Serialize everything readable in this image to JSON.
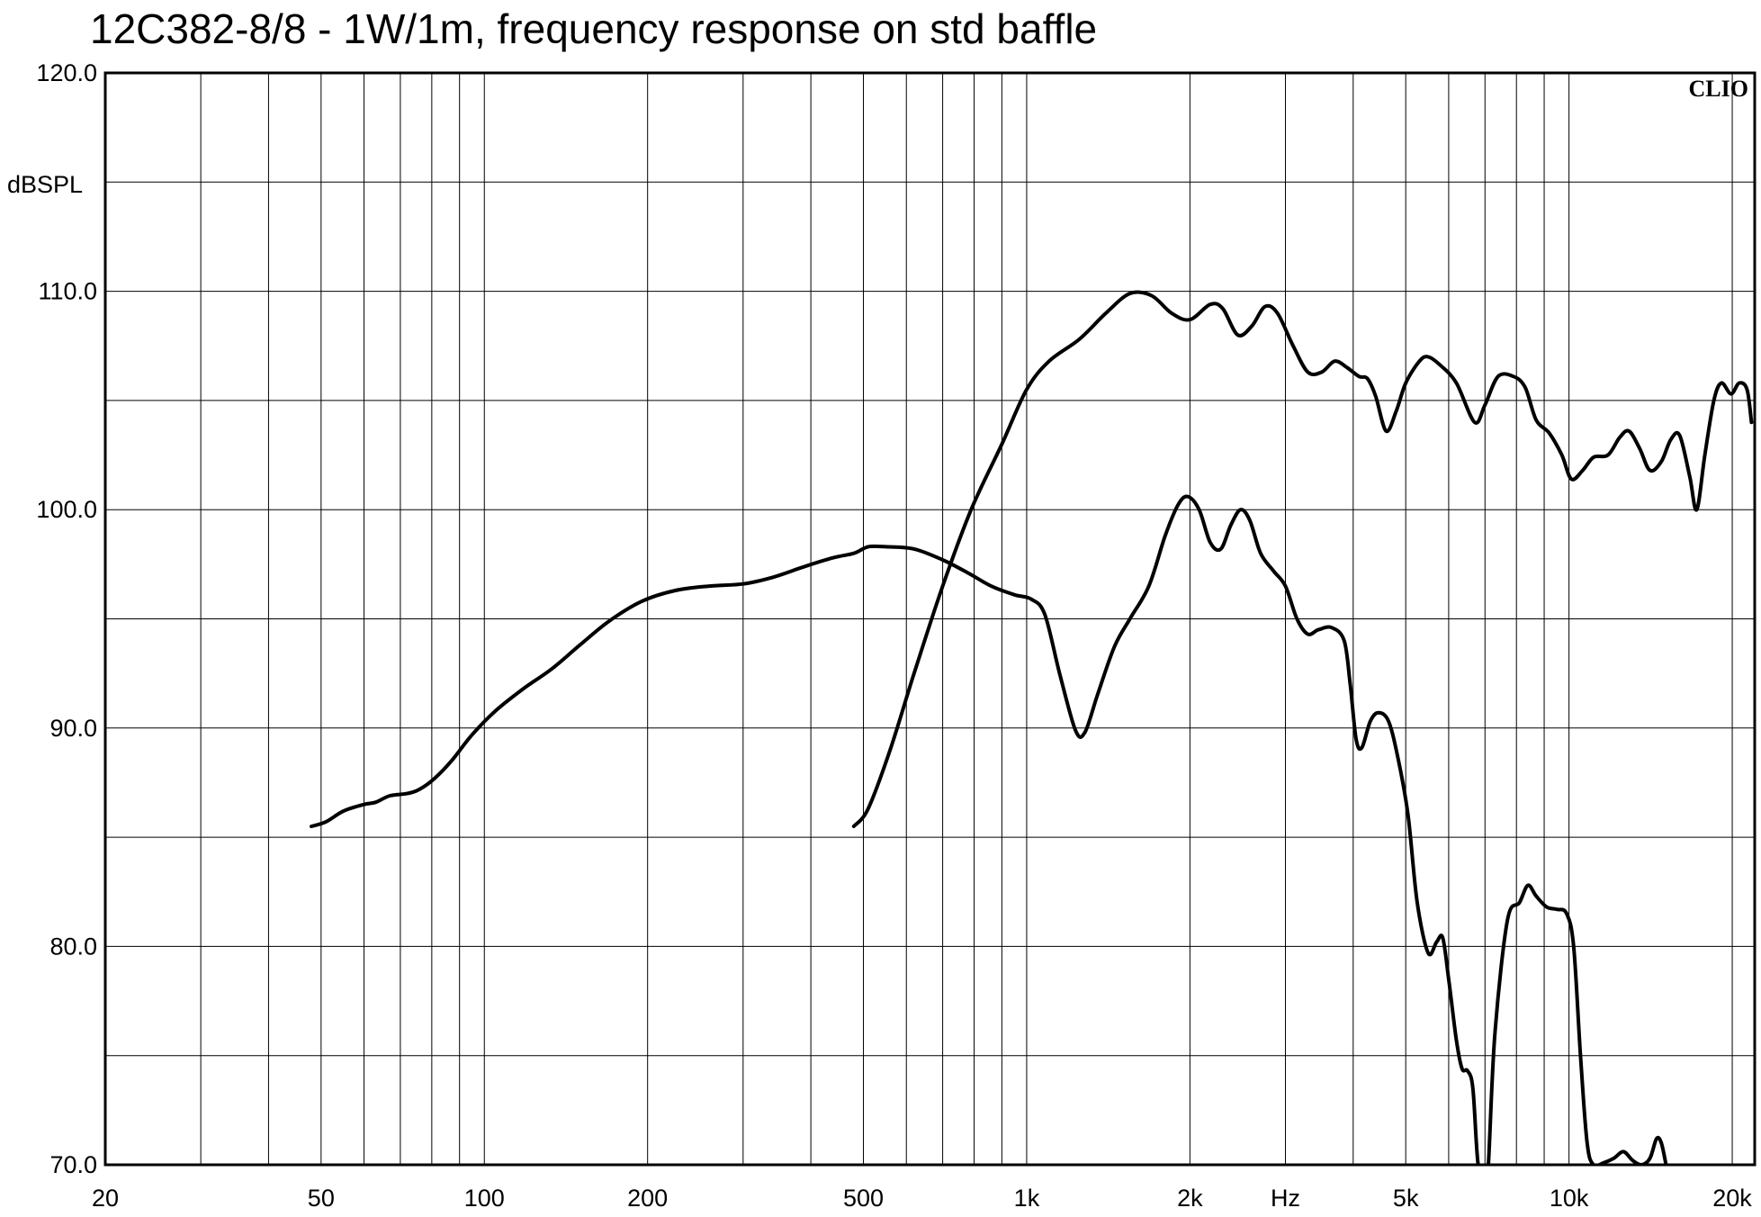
{
  "chart_data": {
    "type": "line",
    "title": "12C382-8/8 - 1W/1m, frequency response on std baffle",
    "ylabel": "dBSPL",
    "xlabel": "Hz",
    "brand": "CLIO",
    "x_scale": "log",
    "xlim": [
      20,
      22000
    ],
    "ylim": [
      70,
      120
    ],
    "grid": true,
    "x_ticks": [
      {
        "value": 20,
        "label": "20"
      },
      {
        "value": 50,
        "label": "50"
      },
      {
        "value": 100,
        "label": "100"
      },
      {
        "value": 200,
        "label": "200"
      },
      {
        "value": 500,
        "label": "500"
      },
      {
        "value": 1000,
        "label": "1k"
      },
      {
        "value": 2000,
        "label": "2k"
      },
      {
        "value": 3000,
        "label": "Hz"
      },
      {
        "value": 5000,
        "label": "5k"
      },
      {
        "value": 10000,
        "label": "10k"
      },
      {
        "value": 20000,
        "label": "20k"
      }
    ],
    "x_grid": [
      30,
      40,
      50,
      60,
      70,
      80,
      90,
      100,
      200,
      300,
      400,
      500,
      600,
      700,
      800,
      900,
      1000,
      2000,
      3000,
      4000,
      5000,
      6000,
      7000,
      8000,
      9000,
      10000,
      20000
    ],
    "y_ticks": [
      {
        "value": 70,
        "label": "70.0"
      },
      {
        "value": 80,
        "label": "80.0"
      },
      {
        "value": 90,
        "label": "90.0"
      },
      {
        "value": 100,
        "label": "100.0"
      },
      {
        "value": 110,
        "label": "110.0"
      },
      {
        "value": 120,
        "label": "120.0"
      }
    ],
    "y_grid": [
      75,
      80,
      85,
      90,
      95,
      100,
      105,
      110,
      115
    ],
    "series": [
      {
        "points": [
          [
            480,
            85.5
          ],
          [
            510,
            86.3
          ],
          [
            560,
            89.0
          ],
          [
            620,
            92.5
          ],
          [
            700,
            96.5
          ],
          [
            790,
            100.0
          ],
          [
            900,
            103.0
          ],
          [
            1000,
            105.5
          ],
          [
            1100,
            106.8
          ],
          [
            1250,
            107.8
          ],
          [
            1400,
            109.0
          ],
          [
            1550,
            109.9
          ],
          [
            1700,
            109.8
          ],
          [
            1850,
            109.0
          ],
          [
            2000,
            108.7
          ],
          [
            2180,
            109.4
          ],
          [
            2300,
            109.2
          ],
          [
            2450,
            108.0
          ],
          [
            2600,
            108.4
          ],
          [
            2750,
            109.3
          ],
          [
            2900,
            109.0
          ],
          [
            3100,
            107.5
          ],
          [
            3300,
            106.3
          ],
          [
            3500,
            106.3
          ],
          [
            3700,
            106.8
          ],
          [
            3900,
            106.5
          ],
          [
            4100,
            106.1
          ],
          [
            4250,
            106.0
          ],
          [
            4400,
            105.2
          ],
          [
            4600,
            103.6
          ],
          [
            4800,
            104.5
          ],
          [
            5000,
            105.8
          ],
          [
            5300,
            106.8
          ],
          [
            5500,
            107.0
          ],
          [
            5800,
            106.6
          ],
          [
            6200,
            105.8
          ],
          [
            6700,
            104.0
          ],
          [
            7000,
            104.8
          ],
          [
            7400,
            106.1
          ],
          [
            7900,
            106.1
          ],
          [
            8300,
            105.6
          ],
          [
            8700,
            104.1
          ],
          [
            9200,
            103.5
          ],
          [
            9700,
            102.5
          ],
          [
            10100,
            101.4
          ],
          [
            10600,
            101.8
          ],
          [
            11100,
            102.4
          ],
          [
            11800,
            102.5
          ],
          [
            12400,
            103.3
          ],
          [
            12900,
            103.6
          ],
          [
            13500,
            102.8
          ],
          [
            14100,
            101.8
          ],
          [
            14800,
            102.2
          ],
          [
            15400,
            103.2
          ],
          [
            16000,
            103.4
          ],
          [
            16700,
            101.5
          ],
          [
            17200,
            100.0
          ],
          [
            17800,
            102.5
          ],
          [
            18500,
            105.0
          ],
          [
            19100,
            105.8
          ],
          [
            19900,
            105.3
          ],
          [
            20600,
            105.8
          ],
          [
            21300,
            105.5
          ],
          [
            21700,
            104.0
          ]
        ]
      },
      {
        "points": [
          [
            48,
            85.5
          ],
          [
            51,
            85.7
          ],
          [
            55,
            86.2
          ],
          [
            60,
            86.5
          ],
          [
            63,
            86.6
          ],
          [
            67,
            86.9
          ],
          [
            72,
            87.0
          ],
          [
            76,
            87.2
          ],
          [
            81,
            87.7
          ],
          [
            87,
            88.5
          ],
          [
            95,
            89.7
          ],
          [
            105,
            90.8
          ],
          [
            118,
            91.8
          ],
          [
            133,
            92.7
          ],
          [
            150,
            93.8
          ],
          [
            170,
            94.9
          ],
          [
            195,
            95.8
          ],
          [
            225,
            96.3
          ],
          [
            260,
            96.5
          ],
          [
            300,
            96.6
          ],
          [
            340,
            96.9
          ],
          [
            390,
            97.4
          ],
          [
            440,
            97.8
          ],
          [
            480,
            98.0
          ],
          [
            510,
            98.3
          ],
          [
            550,
            98.3
          ],
          [
            620,
            98.2
          ],
          [
            700,
            97.7
          ],
          [
            780,
            97.1
          ],
          [
            860,
            96.5
          ],
          [
            950,
            96.1
          ],
          [
            1020,
            95.9
          ],
          [
            1080,
            95.2
          ],
          [
            1150,
            92.5
          ],
          [
            1230,
            89.9
          ],
          [
            1280,
            89.8
          ],
          [
            1350,
            91.5
          ],
          [
            1450,
            93.7
          ],
          [
            1550,
            95.0
          ],
          [
            1680,
            96.5
          ],
          [
            1800,
            98.8
          ],
          [
            1900,
            100.2
          ],
          [
            1980,
            100.6
          ],
          [
            2080,
            100.0
          ],
          [
            2180,
            98.5
          ],
          [
            2280,
            98.2
          ],
          [
            2380,
            99.3
          ],
          [
            2480,
            100.0
          ],
          [
            2580,
            99.5
          ],
          [
            2700,
            98.0
          ],
          [
            2850,
            97.2
          ],
          [
            3000,
            96.5
          ],
          [
            3150,
            95.0
          ],
          [
            3300,
            94.3
          ],
          [
            3450,
            94.5
          ],
          [
            3650,
            94.6
          ],
          [
            3850,
            94.0
          ],
          [
            3950,
            92.0
          ],
          [
            4050,
            89.5
          ],
          [
            4150,
            89.1
          ],
          [
            4300,
            90.3
          ],
          [
            4450,
            90.7
          ],
          [
            4650,
            90.3
          ],
          [
            4850,
            88.5
          ],
          [
            5050,
            86.0
          ],
          [
            5250,
            82.0
          ],
          [
            5500,
            79.7
          ],
          [
            5700,
            80.2
          ],
          [
            5850,
            80.4
          ],
          [
            6000,
            78.5
          ],
          [
            6200,
            75.7
          ],
          [
            6350,
            74.4
          ],
          [
            6500,
            74.3
          ],
          [
            6650,
            73.5
          ],
          [
            6800,
            70.0
          ],
          [
            7000,
            69.5
          ],
          [
            7100,
            70.0
          ],
          [
            7300,
            76.0
          ],
          [
            7700,
            81.2
          ],
          [
            8100,
            82.0
          ],
          [
            8400,
            82.8
          ],
          [
            8700,
            82.3
          ],
          [
            9100,
            81.8
          ],
          [
            9500,
            81.7
          ],
          [
            9900,
            81.5
          ],
          [
            10200,
            80.0
          ],
          [
            10500,
            75.0
          ],
          [
            10800,
            71.0
          ],
          [
            11100,
            70.0
          ],
          [
            11600,
            70.1
          ],
          [
            12100,
            70.3
          ],
          [
            12600,
            70.6
          ],
          [
            13100,
            70.2
          ],
          [
            13600,
            70.0
          ],
          [
            14100,
            70.3
          ],
          [
            14500,
            71.2
          ],
          [
            14800,
            71.0
          ],
          [
            15100,
            70.0
          ]
        ]
      }
    ]
  }
}
